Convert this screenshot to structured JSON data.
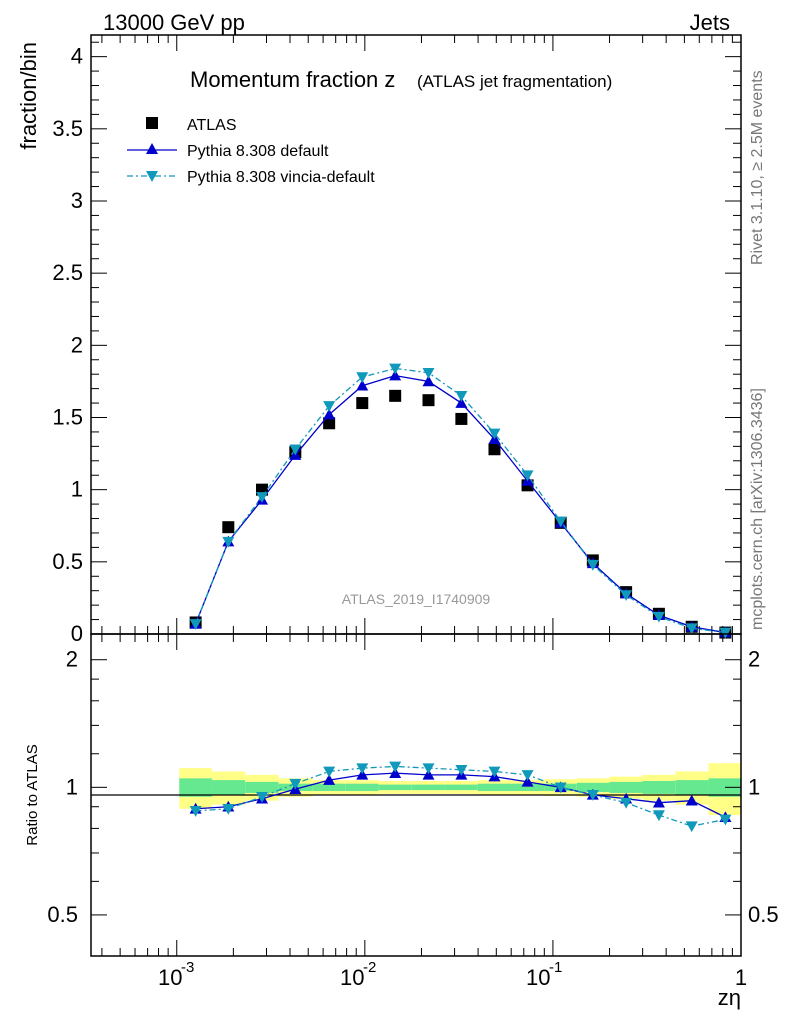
{
  "header": {
    "top_left": "13000 GeV pp",
    "top_right": "Jets"
  },
  "side_labels": {
    "rivet": "Rivet 3.1.10, ≥ 2.5M events",
    "mcplots": "mcplots.cern.ch [arXiv:1306.3436]"
  },
  "watermark": "ATLAS_2019_I1740909",
  "chart_data": [
    {
      "type": "scatter",
      "panel": "main",
      "title_main": "Momentum fraction z",
      "title_sub": "(ATLAS jet fragmentation)",
      "ylabel": "fraction/bin",
      "xlabel": "zη",
      "xscale": "log",
      "xlim": [
        0.00035,
        1.0
      ],
      "ylim": [
        0,
        4.15
      ],
      "yticks": [
        "0",
        "0.5",
        "1",
        "1.5",
        "2",
        "2.5",
        "3",
        "3.5",
        "4"
      ],
      "xtick_labels": [
        "10",
        "-3",
        "10",
        "-2",
        "10",
        "-1",
        "1"
      ],
      "legend_position": "top-left",
      "legend": [
        "ATLAS",
        "Pythia 8.308 default",
        "Pythia 8.308 vincia-default"
      ],
      "x": [
        0.00126,
        0.00188,
        0.00284,
        0.00427,
        0.00646,
        0.00969,
        0.0145,
        0.0218,
        0.0326,
        0.0489,
        0.0733,
        0.11,
        0.163,
        0.245,
        0.366,
        0.547,
        0.826
      ],
      "series": [
        {
          "name": "ATLAS",
          "color": "#000000",
          "marker": "square",
          "values": [
            0.08,
            0.74,
            1.0,
            1.26,
            1.46,
            1.6,
            1.65,
            1.62,
            1.49,
            1.28,
            1.03,
            0.77,
            0.51,
            0.29,
            0.14,
            0.05,
            0.01
          ]
        },
        {
          "name": "Pythia 8.308 default",
          "color": "#0000cc",
          "marker": "triangle-up",
          "line": "solid",
          "values": [
            0.07,
            0.64,
            0.93,
            1.24,
            1.52,
            1.72,
            1.79,
            1.75,
            1.6,
            1.35,
            1.06,
            0.77,
            0.49,
            0.28,
            0.13,
            0.05,
            0.01
          ]
        },
        {
          "name": "Pythia 8.308 vincia-default",
          "color": "#1199bb",
          "marker": "triangle-down",
          "line": "dashdot",
          "values": [
            0.07,
            0.64,
            0.95,
            1.28,
            1.58,
            1.78,
            1.84,
            1.81,
            1.65,
            1.39,
            1.1,
            0.78,
            0.48,
            0.27,
            0.12,
            0.04,
            0.01
          ]
        }
      ]
    },
    {
      "type": "line",
      "panel": "ratio",
      "ylabel": "Ratio to ATLAS",
      "yscale": "log",
      "ylim": [
        0.4,
        2.3
      ],
      "yticks": [
        "0.5",
        "1",
        "2"
      ],
      "x": [
        0.00126,
        0.00188,
        0.00284,
        0.00427,
        0.00646,
        0.00969,
        0.0145,
        0.0218,
        0.0326,
        0.0489,
        0.0733,
        0.11,
        0.163,
        0.245,
        0.366,
        0.547,
        0.826
      ],
      "band_inner_color": "#66e890",
      "band_outer_color": "#ffff88",
      "band_inner": [
        0.05,
        0.04,
        0.03,
        0.02,
        0.02,
        0.02,
        0.015,
        0.015,
        0.015,
        0.02,
        0.02,
        0.02,
        0.025,
        0.03,
        0.035,
        0.04,
        0.05
      ],
      "band_outer": [
        0.11,
        0.09,
        0.07,
        0.05,
        0.04,
        0.04,
        0.035,
        0.035,
        0.035,
        0.04,
        0.04,
        0.045,
        0.05,
        0.06,
        0.07,
        0.09,
        0.14
      ],
      "series": [
        {
          "name": "Pythia 8.308 default",
          "color": "#0000cc",
          "marker": "triangle-up",
          "line": "solid",
          "values": [
            0.89,
            0.9,
            0.94,
            0.99,
            1.04,
            1.07,
            1.08,
            1.07,
            1.07,
            1.06,
            1.03,
            1.0,
            0.96,
            0.94,
            0.92,
            0.93,
            0.85
          ]
        },
        {
          "name": "Pythia 8.308 vincia-default",
          "color": "#1199bb",
          "marker": "triangle-down",
          "line": "dashdot",
          "values": [
            0.88,
            0.89,
            0.95,
            1.02,
            1.09,
            1.11,
            1.12,
            1.11,
            1.1,
            1.09,
            1.07,
            1.0,
            0.96,
            0.92,
            0.86,
            0.81,
            0.84
          ]
        }
      ]
    }
  ]
}
